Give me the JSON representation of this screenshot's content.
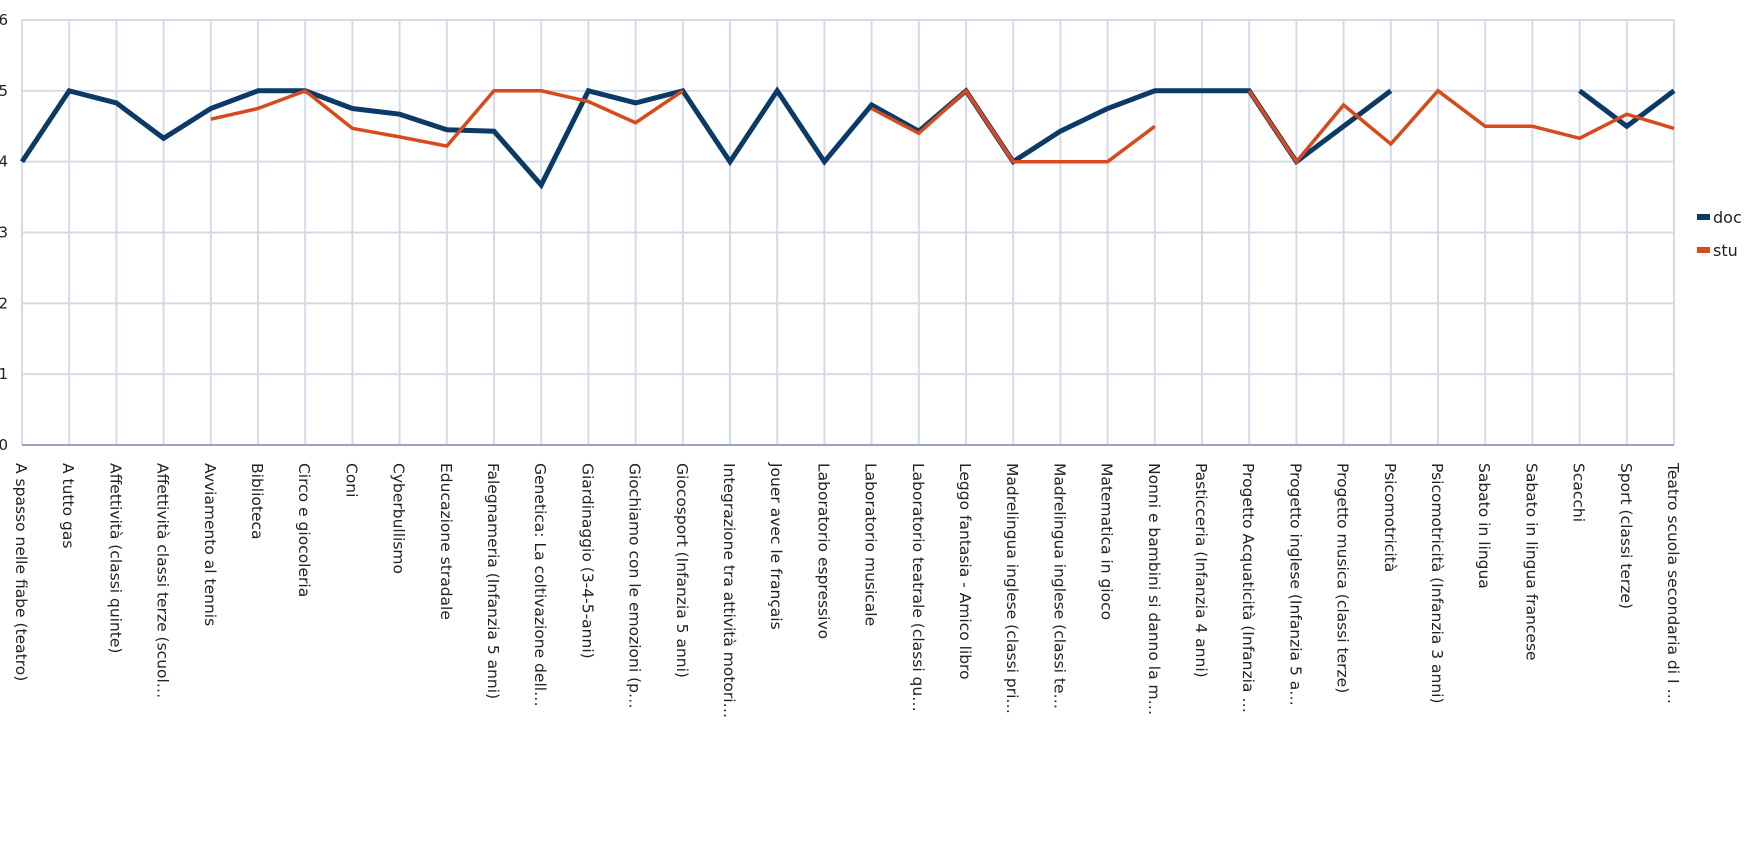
{
  "chart_data": {
    "type": "line",
    "categories": [
      "A spasso nelle fiabe (teatro)",
      "A tutto gas",
      "Affettività (classi quinte)",
      "Affettività classi terze  (scuol…",
      "Avviamento al tennis",
      "Biblioteca",
      "Circo e giocoleria",
      "Coni",
      "Cyberbullismo",
      "Educazione stradale",
      "Falegnameria (Infanzia 5 anni)",
      "Genetica: La coltivazione dell…",
      "Giardinaggio (3-4-5-anni)",
      "Giochiamo con le emozioni (p…",
      "Giocosport (Infanzia 5 anni)",
      "Integrazione tra attività motori…",
      "Jouer avec le français",
      "Laboratorio espressivo",
      "Laboratorio musicale",
      "Laboratorio teatrale (classi qu…",
      "Leggo fantasia - Amico libro",
      "Madrelingua inglese (classi pri…",
      "Madrelingua inglese (classi te…",
      "Matematica in gioco",
      "Nonni e bambini si danno la m…",
      "Pasticceria (Infanzia 4 anni)",
      "Progetto Acquaticità (Infanzia …",
      "Progetto inglese (Infanzia 5 a…",
      "Progetto musica (classi terze)",
      "Psicomotricità",
      "Psicomotricità (Infanzia 3 anni)",
      "Sabato in lingua",
      "Sabato in lingua francese",
      "Scacchi",
      "Sport (classi terze)",
      "Teatro scuola secondaria di I …"
    ],
    "series": [
      {
        "name": "doc",
        "color": "#0b3a66",
        "values": [
          4,
          5,
          4.83,
          4.33,
          4.75,
          5,
          5,
          4.75,
          4.67,
          4.45,
          4.43,
          3.67,
          5,
          4.83,
          5,
          4,
          5,
          4,
          4.8,
          4.43,
          5,
          4,
          4.43,
          4.75,
          5,
          5,
          5,
          4,
          4.5,
          5,
          null,
          null,
          null,
          5,
          4.5,
          5
        ]
      },
      {
        "name": "stu",
        "color": "#d64a1c",
        "values": [
          null,
          null,
          null,
          null,
          4.6,
          4.75,
          5,
          4.47,
          4.35,
          4.22,
          5,
          5,
          4.85,
          4.55,
          5,
          null,
          null,
          null,
          4.75,
          4.4,
          5,
          4,
          4,
          4,
          4.5,
          null,
          5,
          4,
          4.8,
          4.25,
          5,
          4.5,
          4.5,
          4.33,
          4.67,
          4.47
        ]
      }
    ],
    "ylim": [
      0,
      6
    ],
    "yticks": [
      0,
      1,
      2,
      3,
      4,
      5,
      6
    ],
    "grid": true,
    "legend": "right"
  }
}
